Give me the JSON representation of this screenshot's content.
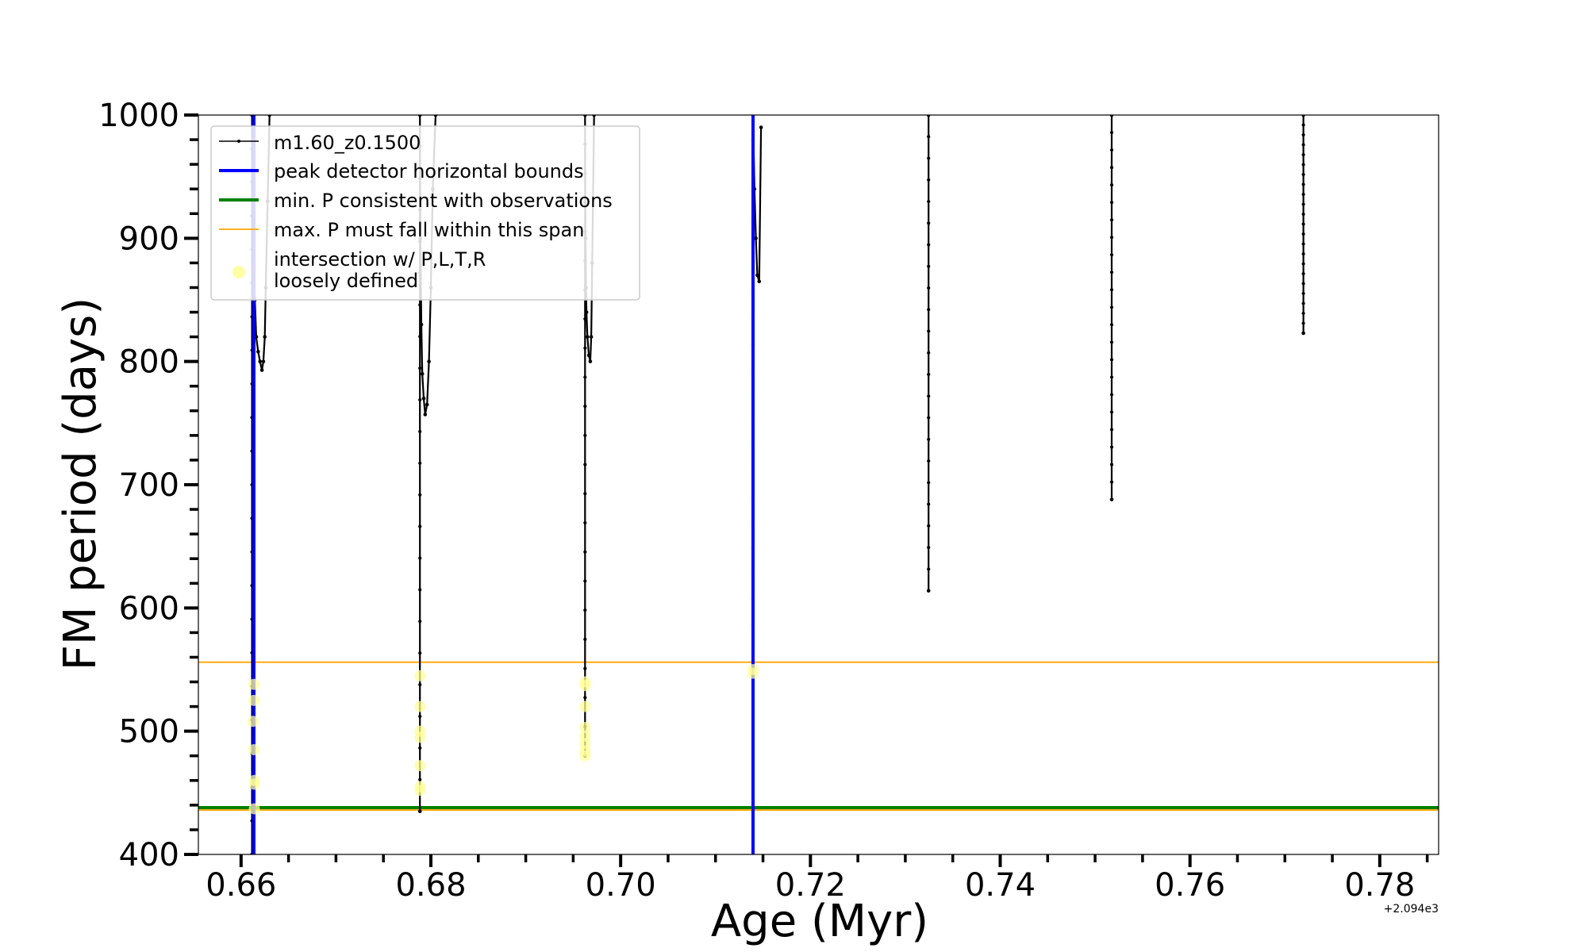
{
  "chart_data": {
    "type": "line",
    "xlabel": "Age (Myr)",
    "ylabel": "FM period (days)",
    "offset_label": "+2.094e3",
    "xlim": [
      0.6555,
      0.7862
    ],
    "ylim": [
      400,
      1000
    ],
    "xticks": [
      0.66,
      0.68,
      0.7,
      0.72,
      0.74,
      0.76,
      0.78
    ],
    "xtick_labels": [
      "0.66",
      "0.68",
      "0.70",
      "0.72",
      "0.74",
      "0.76",
      "0.78"
    ],
    "yticks": [
      400,
      500,
      600,
      700,
      800,
      900,
      1000
    ],
    "ytick_labels": [
      "400",
      "500",
      "600",
      "700",
      "800",
      "900",
      "1000"
    ],
    "legend": {
      "location": "upper-left",
      "entries": [
        {
          "label": "m1.60_z0.1500",
          "color": "#000000",
          "style": "line-marker"
        },
        {
          "label": "peak detector horizontal bounds",
          "color": "#0000ff",
          "style": "thick-line"
        },
        {
          "label": "min. P consistent with observations",
          "color": "#008000",
          "style": "thick-line"
        },
        {
          "label": "max. P must fall within this span",
          "color": "#ffa500",
          "style": "thin-line"
        },
        {
          "label": "intersection w/ P,L,T,R",
          "label2": "loosely defined",
          "color": "#ffff99",
          "style": "dot"
        }
      ]
    },
    "series": [
      {
        "name": "m1.60_z0.1500",
        "color": "#000000",
        "segments": [
          {
            "x": [
              0.66115,
              0.66115,
              0.66125,
              0.66135,
              0.66145,
              0.6616,
              0.6618,
              0.662,
              0.6622,
              0.66235,
              0.6625,
              0.6626,
              0.6628,
              0.663
            ],
            "y": [
              400,
              1000,
              900,
              870,
              850,
              820,
              808,
              800,
              793,
              800,
              820,
              860,
              930,
              1000
            ]
          },
          {
            "x": [
              0.67885,
              0.67885,
              0.6789,
              0.679,
              0.6791,
              0.67925,
              0.6794,
              0.6796,
              0.6798,
              0.68,
              0.6802,
              0.6805
            ],
            "y": [
              435,
              1000,
              900,
              830,
              790,
              770,
              757,
              765,
              800,
              860,
              940,
              1000
            ]
          },
          {
            "x": [
              0.69625,
              0.69625,
              0.6963,
              0.69635,
              0.6964,
              0.6965,
              0.69665,
              0.6968,
              0.6969,
              0.697,
              0.6972
            ],
            "y": [
              480,
              1000,
              900,
              860,
              840,
              820,
              805,
              800,
              820,
              880,
              1000
            ]
          },
          {
            "x": [
              0.71395,
              0.71395,
              0.7141,
              0.71425,
              0.7144,
              0.7146,
              0.7148
            ],
            "y": [
              545,
              1000,
              940,
              900,
              870,
              865,
              990
            ]
          },
          {
            "x": [
              0.73245,
              0.73245
            ],
            "y": [
              614,
              1000
            ]
          },
          {
            "x": [
              0.75175,
              0.75175
            ],
            "y": [
              688,
              1000
            ]
          },
          {
            "x": [
              0.77195,
              0.77195
            ],
            "y": [
              823,
              1000
            ]
          }
        ]
      },
      {
        "name": "peak detector horizontal bounds",
        "color": "#0000ff",
        "vlines": [
          0.66135,
          0.71395
        ]
      },
      {
        "name": "min. P consistent with observations",
        "color": "#008000",
        "hline": 438
      },
      {
        "name": "max. P must fall within this span",
        "color": "#ffa500",
        "hlines": [
          436,
          556
        ]
      },
      {
        "name": "intersection w/ P,L,T,R loosely defined",
        "color": "#ffff99",
        "points": [
          {
            "x": 0.66135,
            "y": 538
          },
          {
            "x": 0.66135,
            "y": 525
          },
          {
            "x": 0.66125,
            "y": 508
          },
          {
            "x": 0.66135,
            "y": 485
          },
          {
            "x": 0.6614,
            "y": 460
          },
          {
            "x": 0.6614,
            "y": 457
          },
          {
            "x": 0.6614,
            "y": 437
          },
          {
            "x": 0.67885,
            "y": 545
          },
          {
            "x": 0.67885,
            "y": 520
          },
          {
            "x": 0.67885,
            "y": 500
          },
          {
            "x": 0.67885,
            "y": 495
          },
          {
            "x": 0.67885,
            "y": 472
          },
          {
            "x": 0.67885,
            "y": 455
          },
          {
            "x": 0.67885,
            "y": 452
          },
          {
            "x": 0.69625,
            "y": 540
          },
          {
            "x": 0.69625,
            "y": 537
          },
          {
            "x": 0.69625,
            "y": 520
          },
          {
            "x": 0.69625,
            "y": 503
          },
          {
            "x": 0.69625,
            "y": 496
          },
          {
            "x": 0.69625,
            "y": 490
          },
          {
            "x": 0.69625,
            "y": 484
          },
          {
            "x": 0.69625,
            "y": 480
          },
          {
            "x": 0.71395,
            "y": 550
          },
          {
            "x": 0.71395,
            "y": 547
          }
        ]
      }
    ]
  }
}
